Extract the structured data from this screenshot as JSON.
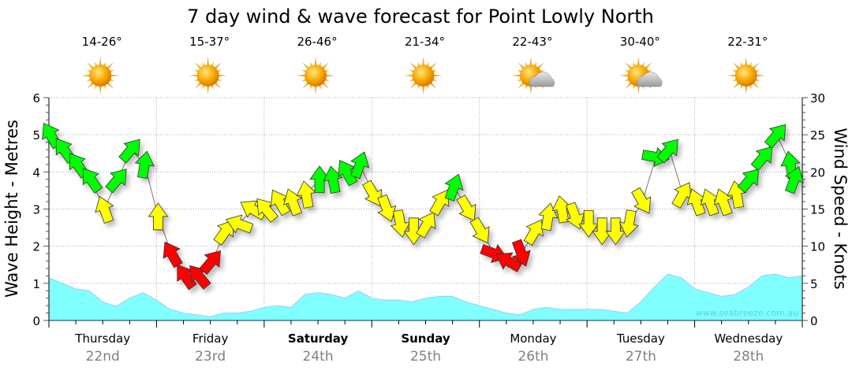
{
  "chart_data": {
    "type": "line",
    "title": "7 day wind & wave forecast for Point Lowly North",
    "ylabel_left": "Wave Height - Metres",
    "ylabel_right": "Wind Speed - Knots",
    "ylim_left": [
      0,
      6
    ],
    "ylim_right": [
      0,
      30
    ],
    "yticks_left": [
      "0",
      "1",
      "2",
      "3",
      "4",
      "5",
      "6"
    ],
    "yticks_right": [
      "0",
      "5",
      "10",
      "15",
      "20",
      "25",
      "30"
    ],
    "grid": true,
    "watermark": "www.seabreeze.com.au",
    "days": [
      {
        "name": "Thursday",
        "date": "22nd",
        "temp": "14-26°",
        "icon": "sunny-icon",
        "bold": false
      },
      {
        "name": "Friday",
        "date": "23rd",
        "temp": "15-37°",
        "icon": "sunny-icon",
        "bold": false
      },
      {
        "name": "Saturday",
        "date": "24th",
        "temp": "26-46°",
        "icon": "sunny-icon",
        "bold": true
      },
      {
        "name": "Sunday",
        "date": "25th",
        "temp": "21-34°",
        "icon": "sunny-icon",
        "bold": true
      },
      {
        "name": "Monday",
        "date": "26th",
        "temp": "22-43°",
        "icon": "partly-cloudy-icon",
        "bold": false
      },
      {
        "name": "Tuesday",
        "date": "27th",
        "temp": "30-40°",
        "icon": "partly-cloudy-icon",
        "bold": false
      },
      {
        "name": "Wednesday",
        "date": "28th",
        "temp": "22-31°",
        "icon": "sunny-icon",
        "bold": false
      }
    ],
    "interval_hours": 3,
    "wind_speed_knots": [
      25,
      23,
      21,
      19,
      15,
      19,
      23,
      21,
      14,
      9,
      6,
      6,
      8,
      12,
      13,
      15,
      15,
      16,
      16,
      17,
      19,
      19,
      20,
      21,
      17,
      15,
      13,
      12,
      13,
      16,
      18,
      15,
      12,
      9,
      8,
      9,
      12,
      14,
      15,
      14,
      13,
      12,
      12,
      13,
      16,
      22,
      23,
      17,
      16,
      16,
      16,
      17,
      19,
      22,
      25,
      21,
      19
    ],
    "wind_arrow_heading_deg": [
      -30,
      -35,
      -35,
      -35,
      -20,
      40,
      40,
      10,
      0,
      -30,
      -35,
      -40,
      40,
      35,
      -70,
      -60,
      -40,
      -30,
      -20,
      -10,
      0,
      -10,
      -30,
      20,
      150,
      160,
      170,
      180,
      30,
      30,
      20,
      150,
      150,
      110,
      -60,
      160,
      30,
      10,
      -10,
      160,
      180,
      180,
      180,
      190,
      150,
      100,
      40,
      30,
      -20,
      -20,
      -20,
      -10,
      40,
      40,
      40,
      -10,
      20
    ],
    "wave_height_m": [
      1.15,
      1.0,
      0.85,
      0.8,
      0.5,
      0.38,
      0.6,
      0.75,
      0.55,
      0.3,
      0.2,
      0.15,
      0.1,
      0.2,
      0.2,
      0.25,
      0.35,
      0.4,
      0.35,
      0.7,
      0.75,
      0.7,
      0.6,
      0.8,
      0.6,
      0.55,
      0.55,
      0.5,
      0.6,
      0.65,
      0.65,
      0.5,
      0.4,
      0.3,
      0.2,
      0.15,
      0.3,
      0.35,
      0.3,
      0.3,
      0.3,
      0.3,
      0.25,
      0.2,
      0.5,
      0.9,
      1.25,
      1.15,
      0.85,
      0.75,
      0.65,
      0.7,
      0.9,
      1.2,
      1.25,
      1.15,
      1.2
    ],
    "wind_colors": {
      "light": "#ff0000",
      "moderate": "#ffff00",
      "strong": "#00ff00"
    },
    "wind_color_thresholds_knots": [
      10,
      18
    ],
    "wave_fill_color": "#80ffff"
  }
}
